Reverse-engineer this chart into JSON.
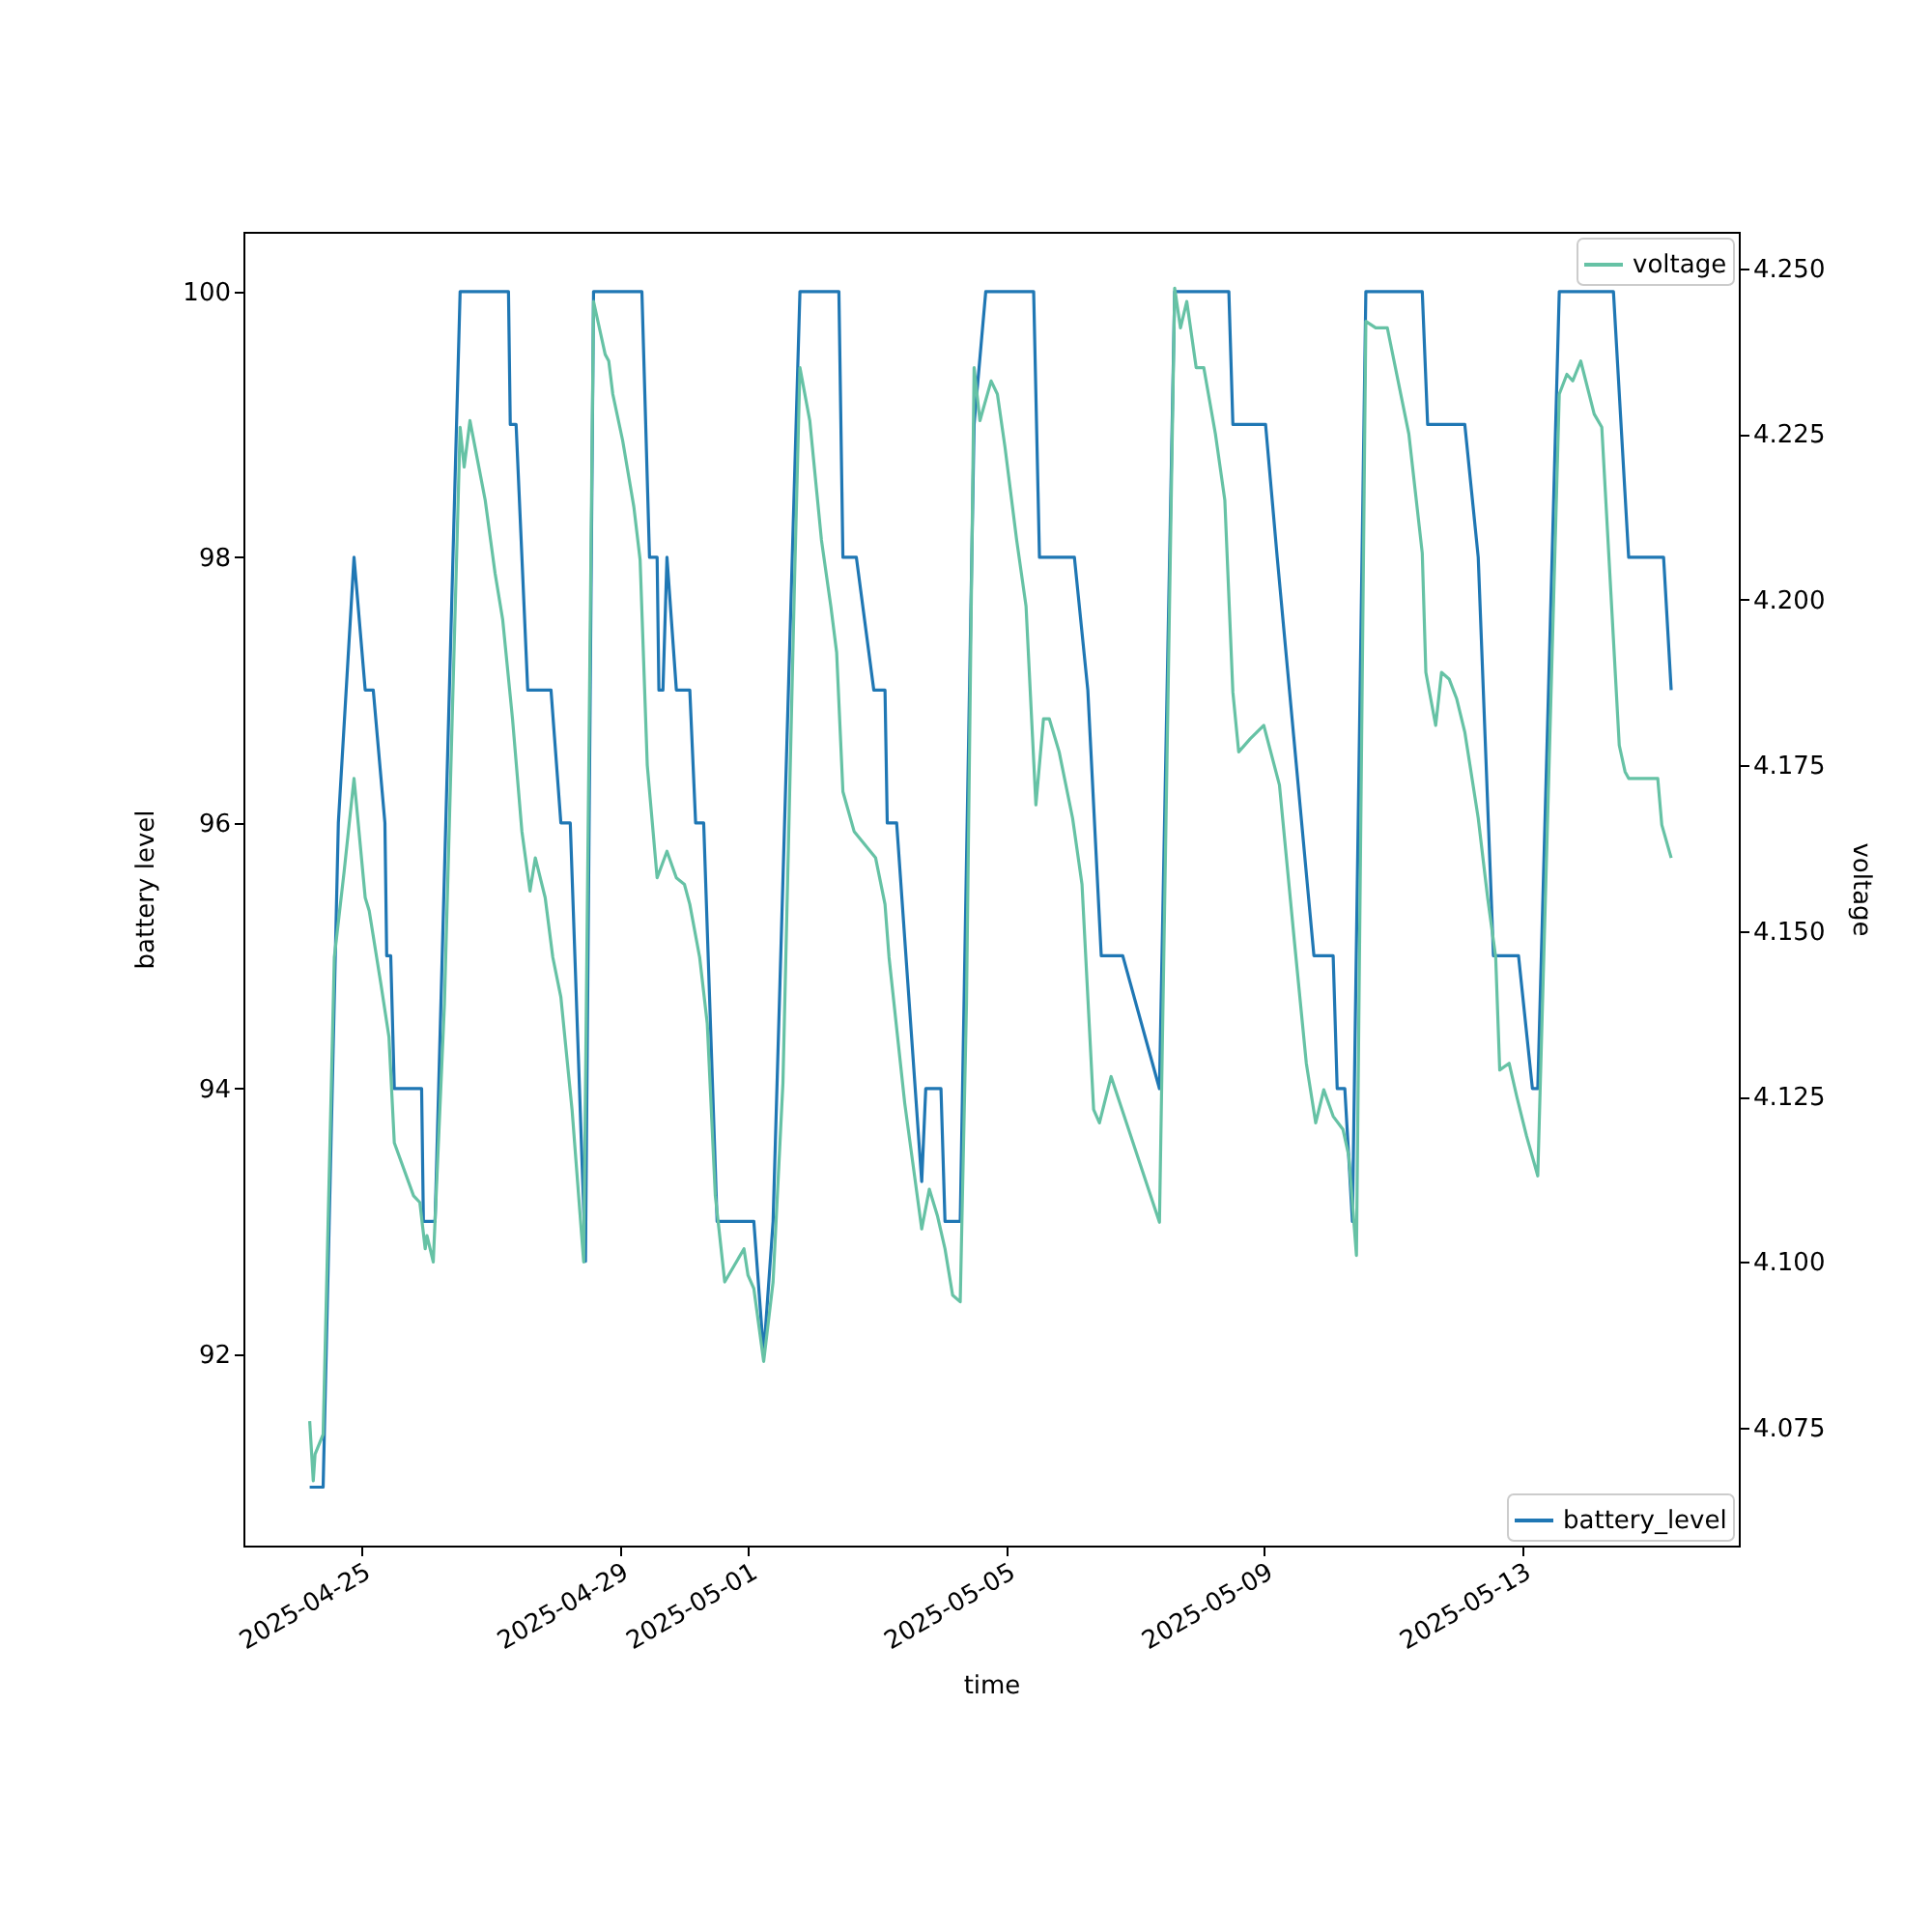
{
  "chart_data": {
    "type": "line",
    "xlabel": "time",
    "ylabel": "battery level",
    "y2label": "voltage",
    "legend": "right",
    "xlim": [
      "2025-04-23T04:00",
      "2025-05-16T08:40"
    ],
    "xticks": [
      "2025-04-25",
      "2025-04-29",
      "2025-05-01",
      "2025-05-05",
      "2025-05-09",
      "2025-05-13"
    ],
    "ylim": [
      90.56,
      100.45
    ],
    "yticks": [
      92,
      94,
      96,
      98,
      100
    ],
    "y2lim": [
      4.0572,
      4.2555
    ],
    "y2ticks": [
      {
        "value": 4.075,
        "label": "4.075"
      },
      {
        "value": 4.1,
        "label": "4.100"
      },
      {
        "value": 4.125,
        "label": "4.125"
      },
      {
        "value": 4.15,
        "label": "4.150"
      },
      {
        "value": 4.175,
        "label": "4.175"
      },
      {
        "value": 4.2,
        "label": "4.200"
      },
      {
        "value": 4.225,
        "label": "4.225"
      },
      {
        "value": 4.25,
        "label": "4.250"
      }
    ],
    "series": [
      {
        "name": "battery_level",
        "color": "#1f77b4",
        "x": [
          "2025-04-24T04:40",
          "2025-04-24T09:40",
          "2025-04-24T15:20",
          "2025-04-24T21:10",
          "2025-04-25T01:20",
          "2025-04-25T04:20",
          "2025-04-25T08:40",
          "2025-04-25T09:20",
          "2025-04-25T10:50",
          "2025-04-25T12:10",
          "2025-04-25T22:20",
          "2025-04-25T23:00",
          "2025-04-26T03:20",
          "2025-04-26T12:40",
          "2025-04-27T06:40",
          "2025-04-27T07:20",
          "2025-04-27T09:30",
          "2025-04-27T13:50",
          "2025-04-27T22:30",
          "2025-04-28T02:10",
          "2025-04-28T05:40",
          "2025-04-28T11:20",
          "2025-04-28T14:20",
          "2025-04-29T08:20",
          "2025-04-29T11:10",
          "2025-04-29T14:00",
          "2025-04-29T14:40",
          "2025-04-29T16:10",
          "2025-04-29T17:40",
          "2025-04-29T21:10",
          "2025-04-30T02:10",
          "2025-04-30T04:20",
          "2025-04-30T07:20",
          "2025-04-30T12:20",
          "2025-05-01T02:00",
          "2025-05-01T05:40",
          "2025-05-01T09:10",
          "2025-05-01T19:10",
          "2025-05-02T09:40",
          "2025-05-02T11:10",
          "2025-05-02T16:10",
          "2025-05-02T22:40",
          "2025-05-03T02:50",
          "2025-05-03T03:40",
          "2025-05-03T07:10",
          "2025-05-03T16:30",
          "2025-05-03T18:00",
          "2025-05-03T23:40",
          "2025-05-04T01:10",
          "2025-05-04T06:50",
          "2025-05-04T12:00",
          "2025-05-04T16:20",
          "2025-05-05T10:10",
          "2025-05-05T12:20",
          "2025-05-05T15:20",
          "2025-05-06T01:20",
          "2025-05-06T06:20",
          "2025-05-06T11:20",
          "2025-05-06T19:20",
          "2025-05-07T09:00",
          "2025-05-07T14:40",
          "2025-05-08T10:50",
          "2025-05-08T12:20",
          "2025-05-09T00:30",
          "2025-05-09T04:50",
          "2025-05-09T18:30",
          "2025-05-10T01:40",
          "2025-05-10T03:10",
          "2025-05-10T06:00",
          "2025-05-10T08:50",
          "2025-05-10T13:50",
          "2025-05-11T10:50",
          "2025-05-11T12:50",
          "2025-05-12T02:40",
          "2025-05-12T07:40",
          "2025-05-12T13:20",
          "2025-05-12T22:40",
          "2025-05-13T03:50",
          "2025-05-13T05:50",
          "2025-05-13T13:50",
          "2025-05-14T10:00",
          "2025-05-14T15:40",
          "2025-05-15T04:40",
          "2025-05-15T07:30"
        ],
        "values": [
          91,
          91,
          96,
          98,
          97,
          97,
          96,
          95,
          95,
          94,
          94,
          93,
          93,
          100,
          100,
          99,
          99,
          97,
          97,
          96,
          96,
          92.7,
          100,
          100,
          98,
          98,
          97,
          97,
          98,
          97,
          97,
          96,
          96,
          93,
          93,
          92,
          93,
          100,
          100,
          98,
          98,
          97,
          97,
          96,
          96,
          93.3,
          94,
          94,
          93,
          93,
          99,
          100,
          100,
          98,
          98,
          98,
          97,
          95,
          95,
          94,
          100,
          100,
          99,
          99,
          98,
          95,
          95,
          94,
          94,
          93,
          100,
          100,
          99,
          99,
          98,
          95,
          95,
          94,
          94,
          100,
          100,
          98,
          98,
          97
        ]
      },
      {
        "name": "voltage",
        "color": "#66c2a5",
        "axis": "y2",
        "x": [
          "2025-04-24T04:40",
          "2025-04-24T06:00",
          "2025-04-24T06:40",
          "2025-04-24T09:40",
          "2025-04-24T13:50",
          "2025-04-24T17:30",
          "2025-04-24T21:10",
          "2025-04-25T01:20",
          "2025-04-25T02:50",
          "2025-04-25T07:10",
          "2025-04-25T10:10",
          "2025-04-25T12:10",
          "2025-04-25T19:20",
          "2025-04-25T21:40",
          "2025-04-25T23:40",
          "2025-04-26T00:20",
          "2025-04-26T02:40",
          "2025-04-26T06:50",
          "2025-04-26T12:40",
          "2025-04-26T14:10",
          "2025-04-26T16:20",
          "2025-04-26T19:10",
          "2025-04-26T22:00",
          "2025-04-27T01:40",
          "2025-04-27T04:30",
          "2025-04-27T08:10",
          "2025-04-27T11:40",
          "2025-04-27T14:40",
          "2025-04-27T16:40",
          "2025-04-27T20:20",
          "2025-04-27T23:10",
          "2025-04-28T02:10",
          "2025-04-28T06:20",
          "2025-04-28T10:40",
          "2025-04-28T14:20",
          "2025-04-28T18:40",
          "2025-04-28T20:00",
          "2025-04-28T21:30",
          "2025-04-29T01:10",
          "2025-04-29T05:20",
          "2025-04-29T07:40",
          "2025-04-29T10:20",
          "2025-04-29T14:00",
          "2025-04-29T17:40",
          "2025-04-29T21:10",
          "2025-04-30T00:10",
          "2025-04-30T02:10",
          "2025-04-30T05:50",
          "2025-04-30T08:40",
          "2025-04-30T11:40",
          "2025-04-30T15:10",
          "2025-04-30T22:20",
          "2025-04-30T23:50",
          "2025-05-01T02:00",
          "2025-05-01T05:40",
          "2025-05-01T09:10",
          "2025-05-01T12:50",
          "2025-05-01T17:10",
          "2025-05-01T19:10",
          "2025-05-01T22:50",
          "2025-05-02T03:10",
          "2025-05-02T06:40",
          "2025-05-02T08:50",
          "2025-05-02T11:10",
          "2025-05-02T15:20",
          "2025-05-02T23:20",
          "2025-05-03T02:50",
          "2025-05-03T04:20",
          "2025-05-03T10:10",
          "2025-05-03T16:30",
          "2025-05-03T19:20",
          "2025-05-03T22:20",
          "2025-05-04T01:10",
          "2025-05-04T04:00",
          "2025-05-04T06:50",
          "2025-05-04T09:10",
          "2025-05-04T12:00",
          "2025-05-04T14:10",
          "2025-05-04T18:20",
          "2025-05-04T20:40",
          "2025-05-04T23:30",
          "2025-05-05T03:50",
          "2025-05-05T07:20",
          "2025-05-05T11:00",
          "2025-05-05T13:50",
          "2025-05-05T16:00",
          "2025-05-05T19:40",
          "2025-05-06T00:40",
          "2025-05-06T04:10",
          "2025-05-06T08:30",
          "2025-05-06T10:40",
          "2025-05-06T15:00",
          "2025-05-07T09:00",
          "2025-05-07T14:40",
          "2025-05-07T16:50",
          "2025-05-07T19:10",
          "2025-05-07T22:40",
          "2025-05-08T01:30",
          "2025-05-08T05:50",
          "2025-05-08T09:20",
          "2025-05-08T12:20",
          "2025-05-08T14:30",
          "2025-05-08T18:50",
          "2025-05-08T23:50",
          "2025-05-09T05:40",
          "2025-05-09T11:20",
          "2025-05-09T15:40",
          "2025-05-09T19:10",
          "2025-05-09T22:10",
          "2025-05-10T01:40",
          "2025-05-10T05:20",
          "2025-05-10T07:30",
          "2025-05-10T10:20",
          "2025-05-10T13:50",
          "2025-05-10T17:30",
          "2025-05-10T21:50",
          "2025-05-11T05:50",
          "2025-05-11T10:50",
          "2025-05-11T12:10",
          "2025-05-11T15:50",
          "2025-05-11T18:00",
          "2025-05-11T20:50",
          "2025-05-11T23:40",
          "2025-05-12T02:40",
          "2025-05-12T07:40",
          "2025-05-12T11:10",
          "2025-05-12T14:10",
          "2025-05-12T15:40",
          "2025-05-12T19:10",
          "2025-05-12T22:00",
          "2025-05-13T01:40",
          "2025-05-13T05:50",
          "2025-05-13T13:50",
          "2025-05-13T16:40",
          "2025-05-13T18:50",
          "2025-05-13T21:50",
          "2025-05-14T02:50",
          "2025-05-14T05:40",
          "2025-05-14T12:10",
          "2025-05-14T14:20",
          "2025-05-14T15:40",
          "2025-05-15T02:30",
          "2025-05-15T04:00",
          "2025-05-15T07:30"
        ],
        "values": [
          4.076,
          4.067,
          4.071,
          4.074,
          4.146,
          4.159,
          4.173,
          4.155,
          4.153,
          4.142,
          4.134,
          4.118,
          4.11,
          4.109,
          4.102,
          4.104,
          4.1,
          4.139,
          4.226,
          4.22,
          4.227,
          4.221,
          4.215,
          4.204,
          4.197,
          4.182,
          4.165,
          4.156,
          4.161,
          4.155,
          4.146,
          4.14,
          4.123,
          4.1,
          4.245,
          4.237,
          4.236,
          4.231,
          4.224,
          4.214,
          4.206,
          4.175,
          4.158,
          4.162,
          4.158,
          4.157,
          4.154,
          4.146,
          4.136,
          4.11,
          4.097,
          4.102,
          4.098,
          4.096,
          4.085,
          4.097,
          4.127,
          4.203,
          4.235,
          4.227,
          4.209,
          4.199,
          4.192,
          4.171,
          4.165,
          4.161,
          4.154,
          4.146,
          4.124,
          4.105,
          4.111,
          4.107,
          4.102,
          4.095,
          4.094,
          4.139,
          4.235,
          4.227,
          4.233,
          4.231,
          4.223,
          4.209,
          4.199,
          4.169,
          4.182,
          4.182,
          4.177,
          4.167,
          4.157,
          4.123,
          4.121,
          4.128,
          4.106,
          4.247,
          4.241,
          4.245,
          4.235,
          4.235,
          4.225,
          4.215,
          4.186,
          4.177,
          4.179,
          4.181,
          4.172,
          4.148,
          4.13,
          4.121,
          4.126,
          4.122,
          4.12,
          4.116,
          4.101,
          4.242,
          4.241,
          4.241,
          4.225,
          4.207,
          4.189,
          4.181,
          4.189,
          4.188,
          4.185,
          4.18,
          4.167,
          4.155,
          4.146,
          4.129,
          4.13,
          4.125,
          4.119,
          4.113,
          4.231,
          4.234,
          4.233,
          4.236,
          4.228,
          4.226,
          4.178,
          4.174,
          4.173,
          4.173,
          4.166,
          4.161
        ]
      }
    ]
  }
}
